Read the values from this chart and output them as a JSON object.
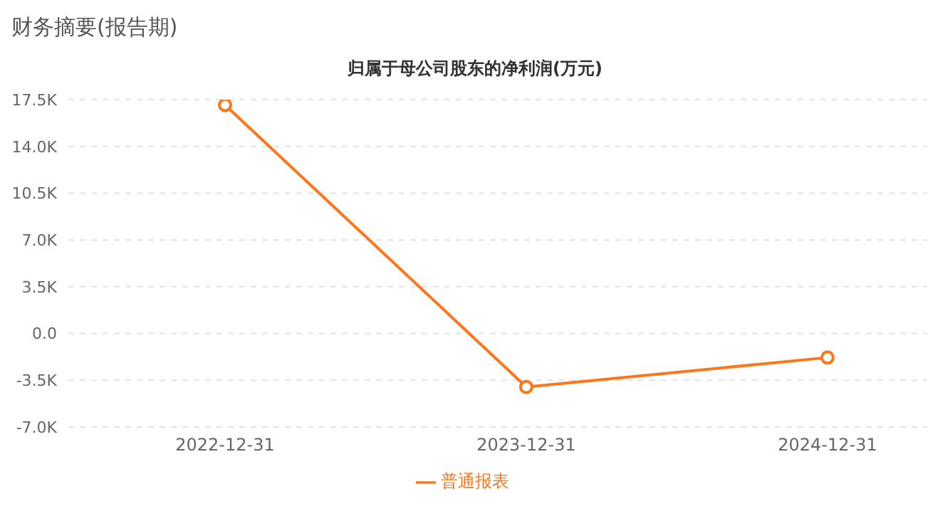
{
  "chart_data": {
    "type": "line",
    "title": "财务摘要(报告期)",
    "subtitle": "归属于母公司股东的净利润(万元)",
    "categories": [
      "2022-12-31",
      "2023-12-31",
      "2024-12-31"
    ],
    "series": [
      {
        "name": "普通报表",
        "color": "#ff7518",
        "values": [
          17100,
          -4000,
          -1800
        ]
      }
    ],
    "ylim": [
      -7000,
      17500
    ],
    "yticks": [
      {
        "value": -7000,
        "label": "-7.0K"
      },
      {
        "value": -3500,
        "label": "-3.5K"
      },
      {
        "value": 0,
        "label": "0.0"
      },
      {
        "value": 3500,
        "label": "3.5K"
      },
      {
        "value": 7000,
        "label": "7.0K"
      },
      {
        "value": 10500,
        "label": "10.5K"
      },
      {
        "value": 14000,
        "label": "14.0K"
      },
      {
        "value": 17500,
        "label": "17.5K"
      }
    ],
    "grid": "y",
    "legend": "bottom",
    "marker": "circle",
    "line_style": "solid"
  }
}
